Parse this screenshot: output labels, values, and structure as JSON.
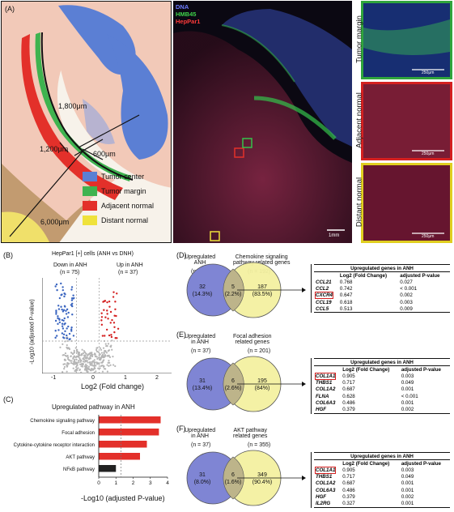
{
  "panelA": {
    "label": "(A)",
    "scale_labels": [
      "1,800μm",
      "1,200μm",
      "600μm",
      "6,000μm"
    ],
    "legend": [
      {
        "label": "Tumor center",
        "color": "#5b7fd4"
      },
      {
        "label": "Tumor margin",
        "color": "#3fb34f"
      },
      {
        "label": "Adjacent normal",
        "color": "#e3302a"
      },
      {
        "label": "Distant normal",
        "color": "#efe23b"
      }
    ],
    "channels": [
      {
        "label": "DNA",
        "color": "#6f7cff"
      },
      {
        "label": "HMB45",
        "color": "#3fd24a"
      },
      {
        "label": "HepPar1",
        "color": "#ff3a3a"
      }
    ],
    "scalebar_fluor": "1mm",
    "insets": [
      {
        "label": "Tumor margin",
        "border": "#2fa53c",
        "scale": "250μm"
      },
      {
        "label": "Adjacent normal",
        "border": "#d42020",
        "scale": "250μm"
      },
      {
        "label": "Distant normal",
        "border": "#e0cf20",
        "scale": "250μm"
      }
    ]
  },
  "panelB": {
    "label": "(B)",
    "title": "HepPar1 [+] cells (ANH vs DNH)",
    "down": "Down in ANH",
    "down_n": "(n = 75)",
    "up": "Up in ANH",
    "up_n": "(n = 37)",
    "ylabel": "-Log10 (adjusted P-value)",
    "xlabel": "Log2 (Fold change)",
    "xticks": [
      "-1",
      "0",
      "1",
      "2"
    ]
  },
  "panelC": {
    "label": "(C)",
    "title": "Upregulated pathway in ANH",
    "xlabel": "-Log10 (adjusted P-value)",
    "xticks": [
      "0",
      "1",
      "2",
      "3",
      "4"
    ]
  },
  "chart_data": [
    {
      "type": "scatter",
      "title": "HepPar1 [+] cells (ANH vs DNH)",
      "xlabel": "Log2 (Fold change)",
      "ylabel": "-Log10 (adjusted P-value)",
      "xlim": [
        -1,
        2
      ],
      "thresholds": {
        "x": [
          -0.3,
          0.3
        ],
        "y": 1.3
      }
    },
    {
      "type": "bar",
      "title": "Upregulated pathway in ANH",
      "xlabel": "-Log10 (adjusted P-value)",
      "categories": [
        "Chemokine signaling pathway",
        "Focal adhesion",
        "Cytokine-cytokine receptor interaction",
        "AKT pathway",
        "NFκB pathway"
      ],
      "values": [
        3.6,
        3.5,
        2.8,
        2.4,
        1.0
      ],
      "colors": [
        "#e3302a",
        "#e3302a",
        "#e3302a",
        "#e3302a",
        "#222222"
      ],
      "xlim": [
        0,
        4
      ],
      "threshold": 1.3
    }
  ],
  "panelD": {
    "label": "(D)",
    "left_title": "Upregulated\nANH",
    "left_n": "(n = 37)",
    "right_title": "Chemokine signaling\npathway related genes",
    "right_n": "(n = 192)",
    "left_only": "32",
    "left_pct": "(14.3%)",
    "overlap": "5",
    "overlap_pct": "(2.2%)",
    "right_only": "187",
    "right_pct": "(83.5%)",
    "table_title": "Upregulated genes in ANH",
    "col1": "Log2 (Fold Change)",
    "col2": "adjusted P-value",
    "rows": [
      {
        "gene": "CCL21",
        "fc": "0.768",
        "p": "0.027"
      },
      {
        "gene": "CCL2",
        "fc": "0.742",
        "p": "< 0.001"
      },
      {
        "gene": "CXCR4",
        "fc": "0.647",
        "p": "0.002",
        "hl": true
      },
      {
        "gene": "CCL19",
        "fc": "0.618",
        "p": "0.003"
      },
      {
        "gene": "CCL5",
        "fc": "0.513",
        "p": "0.009"
      }
    ]
  },
  "panelE": {
    "label": "(E)",
    "left_title": "Upregulated\nin ANH",
    "left_n": "(n = 37)",
    "right_title": "Focal adhesion\nrelated genes",
    "right_n": "(n = 201)",
    "left_only": "31",
    "left_pct": "(13.4%)",
    "overlap": "6",
    "overlap_pct": "(2.6%)",
    "right_only": "195",
    "right_pct": "(84%)",
    "table_title": "Upregulated genes in ANH",
    "col1": "Log2 (Fold Change)",
    "col2": "adjusted P-value",
    "rows": [
      {
        "gene": "COL1A1",
        "fc": "0.905",
        "p": "0.003",
        "hl": true
      },
      {
        "gene": "THBS1",
        "fc": "0.717",
        "p": "0.049"
      },
      {
        "gene": "COL1A2",
        "fc": "0.687",
        "p": "0.001"
      },
      {
        "gene": "FLNA",
        "fc": "0.628",
        "p": "< 0.001"
      },
      {
        "gene": "COL6A3",
        "fc": "0.486",
        "p": "0.001"
      },
      {
        "gene": "HGF",
        "fc": "0.379",
        "p": "0.002"
      }
    ]
  },
  "panelF": {
    "label": "(F)",
    "left_title": "Upregulated\nin ANH",
    "left_n": "(n = 37)",
    "right_title": "AKT pathway\nrelated genes",
    "right_n": "(n = 355)",
    "left_only": "31",
    "left_pct": "(8.0%)",
    "overlap": "6",
    "overlap_pct": "(1.6%)",
    "right_only": "349",
    "right_pct": "(90.4%)",
    "table_title": "Upregulated genes in ANH",
    "col1": "Log2 (Fold Change)",
    "col2": "adjusted P-value",
    "rows": [
      {
        "gene": "COL1A1",
        "fc": "0.905",
        "p": "0.003",
        "hl": true
      },
      {
        "gene": "THBS1",
        "fc": "0.717",
        "p": "0.049"
      },
      {
        "gene": "COL1A2",
        "fc": "0.687",
        "p": "0.001"
      },
      {
        "gene": "COL6A3",
        "fc": "0.486",
        "p": "0.001"
      },
      {
        "gene": "HGF",
        "fc": "0.379",
        "p": "0.002"
      },
      {
        "gene": "IL2RG",
        "fc": "0.327",
        "p": "0.001"
      }
    ]
  }
}
